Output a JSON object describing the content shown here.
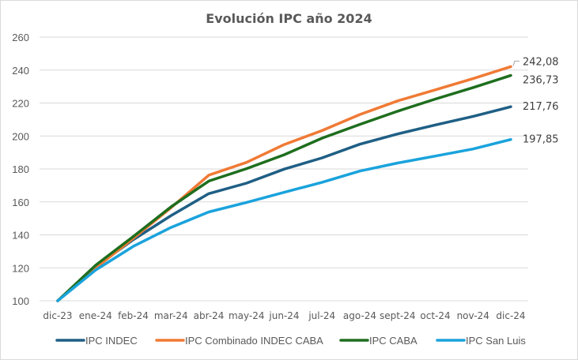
{
  "chart_data": {
    "type": "line",
    "title": "Evolución IPC año 2024",
    "xlabel": "",
    "ylabel": "",
    "ylim": [
      100,
      260
    ],
    "yticks": [
      100,
      120,
      140,
      160,
      180,
      200,
      220,
      240,
      260
    ],
    "grid": true,
    "legend_position": "bottom",
    "categories": [
      "dic-23",
      "ene-24",
      "feb-24",
      "mar-24",
      "abr-24",
      "may-24",
      "jun-24",
      "jul-24",
      "ago-24",
      "sept-24",
      "oct-24",
      "nov-24",
      "dic-24"
    ],
    "series": [
      {
        "name": "IPC INDEC",
        "color": "#1f5f85",
        "values": [
          100,
          120.6,
          137.1,
          151.7,
          165.0,
          171.4,
          179.9,
          186.7,
          195.0,
          201.2,
          206.7,
          211.9,
          217.76
        ],
        "end_label": "217,76"
      },
      {
        "name": "IPC Combinado INDEC CABA",
        "color": "#f07a35",
        "values": [
          100,
          119.8,
          137.9,
          156.5,
          176.2,
          184.0,
          194.8,
          203.3,
          213.0,
          221.3,
          228.0,
          234.8,
          242.08
        ],
        "end_label": "242,08"
      },
      {
        "name": "IPC CABA",
        "color": "#1e6e1e",
        "values": [
          100,
          121.5,
          139.0,
          157.0,
          172.6,
          180.2,
          188.6,
          198.7,
          207.0,
          215.0,
          222.4,
          229.4,
          236.73
        ],
        "end_label": "236,73"
      },
      {
        "name": "IPC San Luis",
        "color": "#1aa3dc",
        "values": [
          100,
          118.6,
          133.0,
          144.5,
          153.9,
          159.7,
          165.8,
          171.9,
          178.7,
          183.6,
          187.8,
          192.1,
          197.85
        ],
        "end_label": "197,85"
      }
    ]
  },
  "colors": {
    "gridline": "#d9d9d9",
    "text": "#595959"
  }
}
